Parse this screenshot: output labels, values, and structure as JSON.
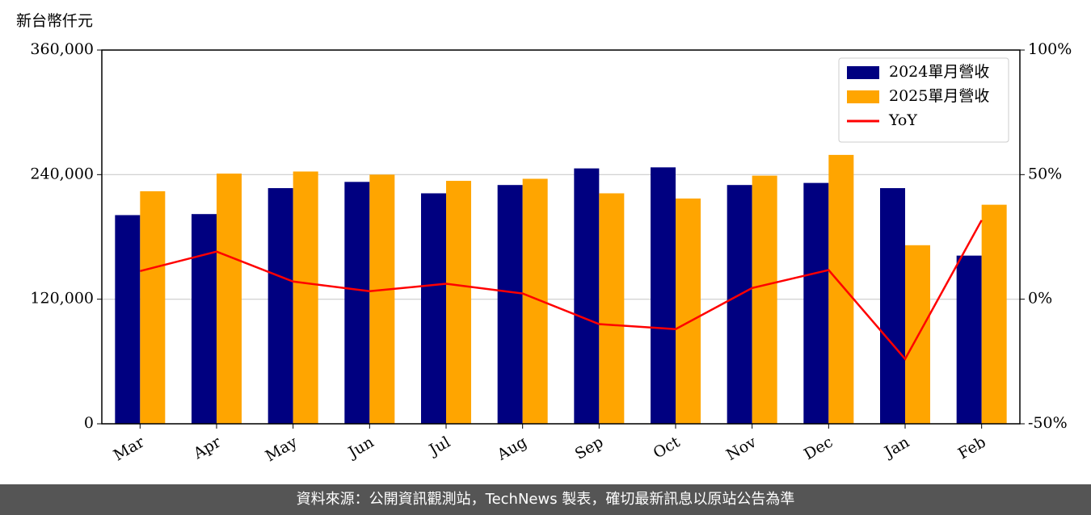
{
  "chart_data": {
    "type": "bar_line",
    "ylabel": "新台幣仟元",
    "categories": [
      "Mar",
      "Apr",
      "May",
      "Jun",
      "Jul",
      "Aug",
      "Sep",
      "Oct",
      "Nov",
      "Dec",
      "Jan",
      "Feb"
    ],
    "series": [
      {
        "name": "2024單月營收",
        "color": "#000080",
        "type": "bar",
        "values": [
          201000,
          202000,
          227000,
          233000,
          222000,
          230000,
          246000,
          247000,
          230000,
          232000,
          227000,
          162000
        ]
      },
      {
        "name": "2025單月營收",
        "color": "#ffa500",
        "type": "bar",
        "values": [
          224000,
          241000,
          243000,
          240000,
          234000,
          236000,
          222000,
          217000,
          239000,
          259000,
          172000,
          211000
        ]
      },
      {
        "name": "YoY",
        "color": "#ff0000",
        "type": "line",
        "axis": "y2",
        "values": [
          11.3,
          19.1,
          7.1,
          3.2,
          6.2,
          2.3,
          -10.0,
          -12.0,
          4.5,
          11.7,
          -24.0,
          31.7
        ]
      }
    ],
    "ylim": [
      0,
      360000
    ],
    "yticks": [
      0,
      {
        "value": 120000,
        "label": "120,000"
      },
      {
        "value": 240000,
        "label": "240,000"
      },
      {
        "value": 360000,
        "label": "360,000"
      }
    ],
    "y2lim": [
      -50,
      100
    ],
    "y2ticks": [
      {
        "value": -50,
        "label": "-50%"
      },
      {
        "value": 0,
        "label": "0%"
      },
      {
        "value": 50,
        "label": "50%"
      },
      {
        "value": 100,
        "label": "100%"
      }
    ],
    "grid": true,
    "legend": "upper right",
    "footer": "資料來源：公開資訊觀測站，TechNews 製表，確切最新訊息以原站公告為準"
  }
}
